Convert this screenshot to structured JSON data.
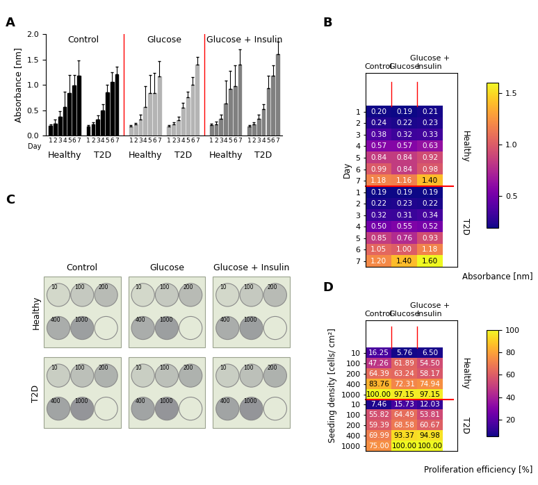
{
  "chart_data": [
    {
      "panel_label": "A",
      "type": "bar",
      "categories": [
        "1",
        "2",
        "3",
        "4",
        "5",
        "6",
        "7"
      ],
      "x_label": "Day",
      "y_label": "Absorbance [nm]",
      "ylim": [
        0,
        2.0
      ],
      "yticks": [
        {
          "value": 0,
          "label": "0.0"
        },
        {
          "value": 0.5,
          "label": "0.5"
        },
        {
          "value": 1.0,
          "label": "1.0"
        },
        {
          "value": 1.5,
          "label": "1.5"
        },
        {
          "value": 2.0,
          "label": "2.0"
        }
      ],
      "groups": [
        {
          "name": "Control",
          "color": "#000000",
          "series": [
            {
              "name": "Healthy",
              "values": [
                0.2,
                0.24,
                0.38,
                0.57,
                0.84,
                0.99,
                1.18
              ],
              "errors": [
                0.03,
                0.08,
                0.1,
                0.3,
                0.35,
                0.2,
                0.3
              ]
            },
            {
              "name": "T2D",
              "values": [
                0.19,
                0.22,
                0.32,
                0.5,
                0.85,
                1.05,
                1.2
              ],
              "errors": [
                0.02,
                0.05,
                0.08,
                0.12,
                0.15,
                0.2,
                0.15
              ]
            }
          ]
        },
        {
          "name": "Glucose",
          "color": "#b4b4b4",
          "series": [
            {
              "name": "Healthy",
              "values": [
                0.19,
                0.22,
                0.32,
                0.57,
                0.84,
                0.84,
                1.16
              ],
              "errors": [
                0.02,
                0.03,
                0.1,
                0.4,
                0.35,
                0.4,
                0.3
              ]
            },
            {
              "name": "T2D",
              "values": [
                0.19,
                0.23,
                0.31,
                0.55,
                0.76,
                1.0,
                1.4
              ],
              "errors": [
                0.02,
                0.03,
                0.06,
                0.1,
                0.1,
                0.15,
                0.15
              ]
            }
          ]
        },
        {
          "name": "Glucose + Insulin",
          "color": "#808080",
          "series": [
            {
              "name": "Healthy",
              "values": [
                0.21,
                0.23,
                0.33,
                0.63,
                0.92,
                0.98,
                1.4
              ],
              "errors": [
                0.03,
                0.05,
                0.08,
                0.45,
                0.35,
                0.4,
                0.3
              ]
            },
            {
              "name": "T2D",
              "values": [
                0.19,
                0.22,
                0.34,
                0.52,
                0.93,
                1.18,
                1.6
              ],
              "errors": [
                0.02,
                0.04,
                0.08,
                0.1,
                0.25,
                0.2,
                0.25
              ]
            }
          ]
        }
      ]
    },
    {
      "panel_label": "B",
      "type": "heatmap",
      "columns": [
        "Control",
        "Glucose",
        "Glucose + Insulin"
      ],
      "y_label": "Day",
      "colorbar_label": "Absorbance [nm]",
      "color_range": [
        0.19,
        1.6
      ],
      "colorbar_ticks": [
        {
          "value": 0.5,
          "label": "0.5"
        },
        {
          "value": 1.0,
          "label": "1.0"
        },
        {
          "value": 1.5,
          "label": "1.5"
        }
      ],
      "row_groups": [
        {
          "name": "Healthy",
          "rows": [
            "1",
            "2",
            "3",
            "4",
            "5",
            "6",
            "7"
          ],
          "cells": [
            [
              0.2,
              0.19,
              0.21
            ],
            [
              0.24,
              0.22,
              0.23
            ],
            [
              0.38,
              0.32,
              0.33
            ],
            [
              0.57,
              0.57,
              0.63
            ],
            [
              0.84,
              0.84,
              0.92
            ],
            [
              0.99,
              0.84,
              0.98
            ],
            [
              1.18,
              1.16,
              1.4
            ]
          ],
          "value_labels": [
            [
              "0.20",
              "0.19",
              "0.21"
            ],
            [
              "0.24",
              "0.22",
              "0.23"
            ],
            [
              "0.38",
              "0.32",
              "0.33"
            ],
            [
              "0.57",
              "0.57",
              "0.63"
            ],
            [
              "0.84",
              "0.84",
              "0.92"
            ],
            [
              "0.99",
              "0.84",
              "0.98"
            ],
            [
              "1.18",
              "1.16",
              "1.40"
            ]
          ]
        },
        {
          "name": "T2D",
          "rows": [
            "1",
            "2",
            "3",
            "4",
            "5",
            "6",
            "7"
          ],
          "cells": [
            [
              0.19,
              0.19,
              0.19
            ],
            [
              0.22,
              0.23,
              0.22
            ],
            [
              0.32,
              0.31,
              0.34
            ],
            [
              0.5,
              0.55,
              0.52
            ],
            [
              0.85,
              0.76,
              0.93
            ],
            [
              1.05,
              1.0,
              1.18
            ],
            [
              1.2,
              1.4,
              1.6
            ]
          ],
          "value_labels": [
            [
              "0.19",
              "0.19",
              "0.19"
            ],
            [
              "0.22",
              "0.23",
              "0.22"
            ],
            [
              "0.32",
              "0.31",
              "0.34"
            ],
            [
              "0.50",
              "0.55",
              "0.52"
            ],
            [
              "0.85",
              "0.76",
              "0.93"
            ],
            [
              "1.05",
              "1.00",
              "1.18"
            ],
            [
              "1.20",
              "1.40",
              "1.60"
            ]
          ]
        }
      ]
    },
    {
      "panel_label": "D",
      "type": "heatmap",
      "columns": [
        "Control",
        "Glucose",
        "Glucose + Insulin"
      ],
      "y_label": "Seeding density [cells/ cm²]",
      "colorbar_label": "Proliferation efficiency [%]",
      "color_range": [
        5,
        100
      ],
      "colorbar_ticks": [
        20,
        40,
        60,
        80,
        100
      ],
      "row_groups": [
        {
          "name": "Healthy",
          "rows": [
            "10",
            "100",
            "200",
            "400",
            "1000"
          ],
          "cells": [
            [
              16.25,
              5.76,
              6.5
            ],
            [
              47.26,
              61.89,
              54.5
            ],
            [
              64.39,
              63.24,
              58.17
            ],
            [
              83.76,
              72.31,
              74.94
            ],
            [
              100.0,
              97.15,
              97.15
            ]
          ],
          "value_labels": [
            [
              "16.25",
              "5.76",
              "6.50"
            ],
            [
              "47.26",
              "61.89",
              "54.50"
            ],
            [
              "64.39",
              "63.24",
              "58.17"
            ],
            [
              "83.76",
              "72.31",
              "74.94"
            ],
            [
              "100.00",
              "97.15",
              "97.15"
            ]
          ]
        },
        {
          "name": "T2D",
          "rows": [
            "10",
            "100",
            "200",
            "400",
            "1000"
          ],
          "cells": [
            [
              7.46,
              15.73,
              12.03
            ],
            [
              55.82,
              64.49,
              53.81
            ],
            [
              59.39,
              68.58,
              60.67
            ],
            [
              69.99,
              93.37,
              94.98
            ],
            [
              75.0,
              100.0,
              100.0
            ]
          ],
          "value_labels": [
            [
              "7.46",
              "15.73",
              "12.03"
            ],
            [
              "55.82",
              "64.49",
              "53.81"
            ],
            [
              "59.39",
              "68.58",
              "60.67"
            ],
            [
              "69.99",
              "93.37",
              "94.98"
            ],
            [
              "75.00",
              "100.00",
              "100.00"
            ]
          ]
        }
      ]
    }
  ],
  "image_panel": {
    "panel_label": "C",
    "columns": [
      "Control",
      "Glucose",
      "Glucose + Insulin"
    ],
    "rows": [
      "Healthy",
      "T2D"
    ],
    "well_labels": [
      "10",
      "100",
      "200",
      "400",
      "1000"
    ]
  }
}
